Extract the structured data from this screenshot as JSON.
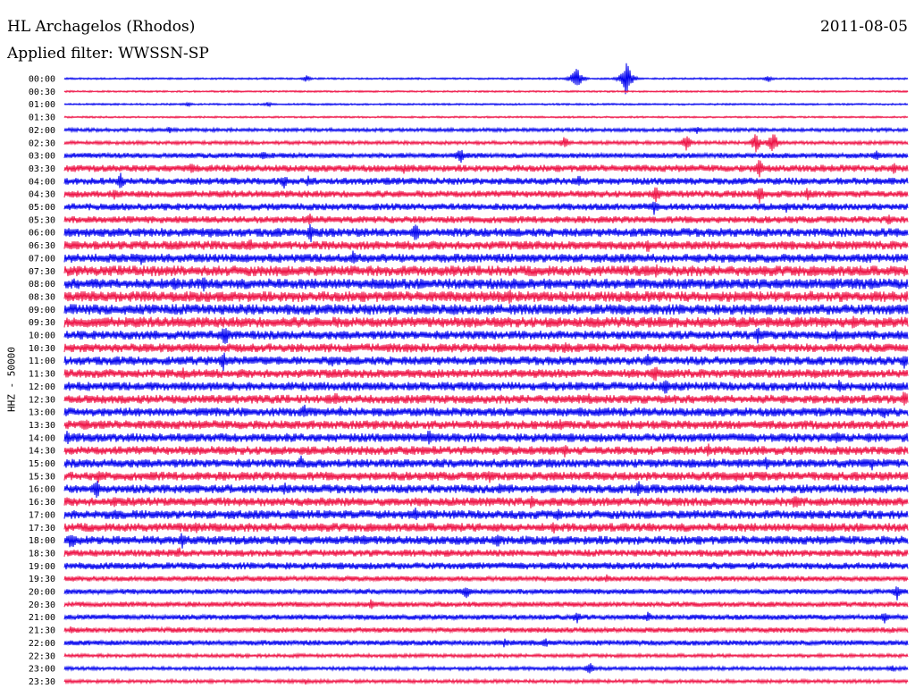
{
  "header": {
    "station": "HL Archagelos (Rhodos)",
    "date": "2011-08-05",
    "filter": "Applied filter: WWSSN-SP"
  },
  "chart_data": {
    "type": "line",
    "ylabel": "HHZ - 50000",
    "rows": [
      "00:00",
      "00:30",
      "01:00",
      "01:30",
      "02:00",
      "02:30",
      "03:00",
      "03:30",
      "04:00",
      "04:30",
      "05:00",
      "05:30",
      "06:00",
      "06:30",
      "07:00",
      "07:30",
      "08:00",
      "08:30",
      "09:00",
      "09:30",
      "10:00",
      "10:30",
      "11:00",
      "11:30",
      "12:00",
      "12:30",
      "13:00",
      "13:30",
      "14:00",
      "14:30",
      "15:00",
      "15:30",
      "16:00",
      "16:30",
      "17:00",
      "17:30",
      "18:00",
      "18:30",
      "19:00",
      "19:30",
      "20:00",
      "20:30",
      "21:00",
      "21:30",
      "22:00",
      "22:30",
      "23:00",
      "23:30"
    ],
    "colors": {
      "even": "#0000ee",
      "odd": "#ee1144"
    },
    "noise_level": [
      1,
      1,
      1,
      1,
      2,
      2,
      3,
      4,
      4,
      4,
      4,
      4,
      5,
      5,
      5,
      6,
      6,
      6,
      6,
      6,
      5,
      5,
      5,
      5,
      5,
      5,
      5,
      5,
      5,
      5,
      5,
      5,
      5,
      5,
      5,
      5,
      5,
      4,
      4,
      3,
      3,
      3,
      3,
      3,
      3,
      2,
      2,
      2
    ],
    "events": [
      {
        "row": 0,
        "x": 645,
        "amp": 15
      },
      {
        "row": 0,
        "x": 701,
        "amp": 22
      },
      {
        "row": 0,
        "x": 343,
        "amp": 4
      },
      {
        "row": 0,
        "x": 860,
        "amp": 4
      },
      {
        "row": 2,
        "x": 210,
        "amp": 3
      },
      {
        "row": 2,
        "x": 300,
        "amp": 3
      },
      {
        "row": 4,
        "x": 190,
        "amp": 4
      },
      {
        "row": 4,
        "x": 780,
        "amp": 6
      },
      {
        "row": 5,
        "x": 632,
        "amp": 8
      },
      {
        "row": 5,
        "x": 768,
        "amp": 10
      },
      {
        "row": 5,
        "x": 846,
        "amp": 12
      },
      {
        "row": 5,
        "x": 865,
        "amp": 14
      },
      {
        "row": 6,
        "x": 515,
        "amp": 10
      },
      {
        "row": 6,
        "x": 295,
        "amp": 6
      },
      {
        "row": 6,
        "x": 980,
        "amp": 8
      },
      {
        "row": 7,
        "x": 215,
        "amp": 8
      },
      {
        "row": 7,
        "x": 452,
        "amp": 6
      },
      {
        "row": 7,
        "x": 850,
        "amp": 12
      },
      {
        "row": 7,
        "x": 1000,
        "amp": 8
      },
      {
        "row": 8,
        "x": 135,
        "amp": 10
      },
      {
        "row": 8,
        "x": 318,
        "amp": 9
      },
      {
        "row": 8,
        "x": 345,
        "amp": 7
      },
      {
        "row": 8,
        "x": 432,
        "amp": 6
      },
      {
        "row": 8,
        "x": 648,
        "amp": 9
      },
      {
        "row": 9,
        "x": 128,
        "amp": 7
      },
      {
        "row": 9,
        "x": 735,
        "amp": 12
      },
      {
        "row": 9,
        "x": 850,
        "amp": 12
      },
      {
        "row": 9,
        "x": 904,
        "amp": 9
      },
      {
        "row": 10,
        "x": 732,
        "amp": 10
      },
      {
        "row": 10,
        "x": 880,
        "amp": 8
      },
      {
        "row": 11,
        "x": 347,
        "amp": 8
      },
      {
        "row": 11,
        "x": 995,
        "amp": 7
      },
      {
        "row": 12,
        "x": 348,
        "amp": 12
      },
      {
        "row": 12,
        "x": 465,
        "amp": 12
      },
      {
        "row": 12,
        "x": 236,
        "amp": 6
      },
      {
        "row": 12,
        "x": 1003,
        "amp": 8
      },
      {
        "row": 13,
        "x": 280,
        "amp": 9
      },
      {
        "row": 13,
        "x": 725,
        "amp": 9
      },
      {
        "row": 14,
        "x": 158,
        "amp": 8
      },
      {
        "row": 14,
        "x": 275,
        "amp": 7
      },
      {
        "row": 14,
        "x": 395,
        "amp": 9
      },
      {
        "row": 15,
        "x": 508,
        "amp": 9
      },
      {
        "row": 15,
        "x": 735,
        "amp": 9
      },
      {
        "row": 16,
        "x": 195,
        "amp": 9
      },
      {
        "row": 16,
        "x": 228,
        "amp": 9
      },
      {
        "row": 16,
        "x": 975,
        "amp": 9
      },
      {
        "row": 17,
        "x": 570,
        "amp": 10
      },
      {
        "row": 17,
        "x": 908,
        "amp": 8
      },
      {
        "row": 18,
        "x": 510,
        "amp": 10
      },
      {
        "row": 18,
        "x": 545,
        "amp": 9
      },
      {
        "row": 18,
        "x": 105,
        "amp": 7
      },
      {
        "row": 19,
        "x": 660,
        "amp": 8
      },
      {
        "row": 19,
        "x": 955,
        "amp": 9
      },
      {
        "row": 19,
        "x": 990,
        "amp": 7
      },
      {
        "row": 20,
        "x": 252,
        "amp": 14
      },
      {
        "row": 20,
        "x": 848,
        "amp": 10
      },
      {
        "row": 20,
        "x": 936,
        "amp": 8
      },
      {
        "row": 21,
        "x": 632,
        "amp": 8
      },
      {
        "row": 21,
        "x": 558,
        "amp": 8
      },
      {
        "row": 21,
        "x": 455,
        "amp": 7
      },
      {
        "row": 21,
        "x": 164,
        "amp": 6
      },
      {
        "row": 22,
        "x": 250,
        "amp": 12
      },
      {
        "row": 22,
        "x": 372,
        "amp": 7
      },
      {
        "row": 22,
        "x": 725,
        "amp": 9
      },
      {
        "row": 22,
        "x": 1012,
        "amp": 9
      },
      {
        "row": 23,
        "x": 205,
        "amp": 8
      },
      {
        "row": 23,
        "x": 733,
        "amp": 12
      },
      {
        "row": 23,
        "x": 822,
        "amp": 8
      },
      {
        "row": 23,
        "x": 912,
        "amp": 8
      },
      {
        "row": 24,
        "x": 745,
        "amp": 12
      },
      {
        "row": 24,
        "x": 940,
        "amp": 9
      },
      {
        "row": 25,
        "x": 375,
        "amp": 10
      },
      {
        "row": 25,
        "x": 660,
        "amp": 8
      },
      {
        "row": 25,
        "x": 1012,
        "amp": 12
      },
      {
        "row": 26,
        "x": 340,
        "amp": 10
      },
      {
        "row": 26,
        "x": 380,
        "amp": 8
      },
      {
        "row": 26,
        "x": 990,
        "amp": 9
      },
      {
        "row": 27,
        "x": 95,
        "amp": 9
      },
      {
        "row": 27,
        "x": 628,
        "amp": 8
      },
      {
        "row": 28,
        "x": 75,
        "amp": 9
      },
      {
        "row": 28,
        "x": 480,
        "amp": 10
      },
      {
        "row": 28,
        "x": 937,
        "amp": 9
      },
      {
        "row": 28,
        "x": 972,
        "amp": 8
      },
      {
        "row": 29,
        "x": 632,
        "amp": 8
      },
      {
        "row": 29,
        "x": 793,
        "amp": 8
      },
      {
        "row": 30,
        "x": 337,
        "amp": 9
      },
      {
        "row": 30,
        "x": 858,
        "amp": 9
      },
      {
        "row": 30,
        "x": 976,
        "amp": 8
      },
      {
        "row": 31,
        "x": 110,
        "amp": 9
      },
      {
        "row": 31,
        "x": 548,
        "amp": 8
      },
      {
        "row": 31,
        "x": 825,
        "amp": 8
      },
      {
        "row": 32,
        "x": 108,
        "amp": 12
      },
      {
        "row": 32,
        "x": 318,
        "amp": 10
      },
      {
        "row": 32,
        "x": 715,
        "amp": 10
      },
      {
        "row": 32,
        "x": 560,
        "amp": 8
      },
      {
        "row": 33,
        "x": 128,
        "amp": 8
      },
      {
        "row": 33,
        "x": 595,
        "amp": 9
      },
      {
        "row": 33,
        "x": 890,
        "amp": 10
      },
      {
        "row": 34,
        "x": 130,
        "amp": 8
      },
      {
        "row": 34,
        "x": 328,
        "amp": 9
      },
      {
        "row": 34,
        "x": 465,
        "amp": 10
      },
      {
        "row": 34,
        "x": 625,
        "amp": 9
      },
      {
        "row": 35,
        "x": 220,
        "amp": 7
      },
      {
        "row": 35,
        "x": 620,
        "amp": 8
      },
      {
        "row": 36,
        "x": 80,
        "amp": 12
      },
      {
        "row": 36,
        "x": 204,
        "amp": 10
      },
      {
        "row": 36,
        "x": 557,
        "amp": 9
      },
      {
        "row": 36,
        "x": 408,
        "amp": 7
      },
      {
        "row": 37,
        "x": 200,
        "amp": 8
      },
      {
        "row": 37,
        "x": 980,
        "amp": 7
      },
      {
        "row": 38,
        "x": 90,
        "amp": 5
      },
      {
        "row": 39,
        "x": 680,
        "amp": 6
      },
      {
        "row": 40,
        "x": 522,
        "amp": 9
      },
      {
        "row": 40,
        "x": 1004,
        "amp": 10
      },
      {
        "row": 41,
        "x": 416,
        "amp": 7
      },
      {
        "row": 42,
        "x": 646,
        "amp": 9
      },
      {
        "row": 42,
        "x": 725,
        "amp": 7
      },
      {
        "row": 42,
        "x": 990,
        "amp": 8
      },
      {
        "row": 43,
        "x": 80,
        "amp": 5
      },
      {
        "row": 44,
        "x": 565,
        "amp": 6
      },
      {
        "row": 44,
        "x": 610,
        "amp": 7
      },
      {
        "row": 46,
        "x": 660,
        "amp": 8
      },
      {
        "row": 46,
        "x": 998,
        "amp": 5
      },
      {
        "row": 47,
        "x": 342,
        "amp": 4
      }
    ]
  }
}
